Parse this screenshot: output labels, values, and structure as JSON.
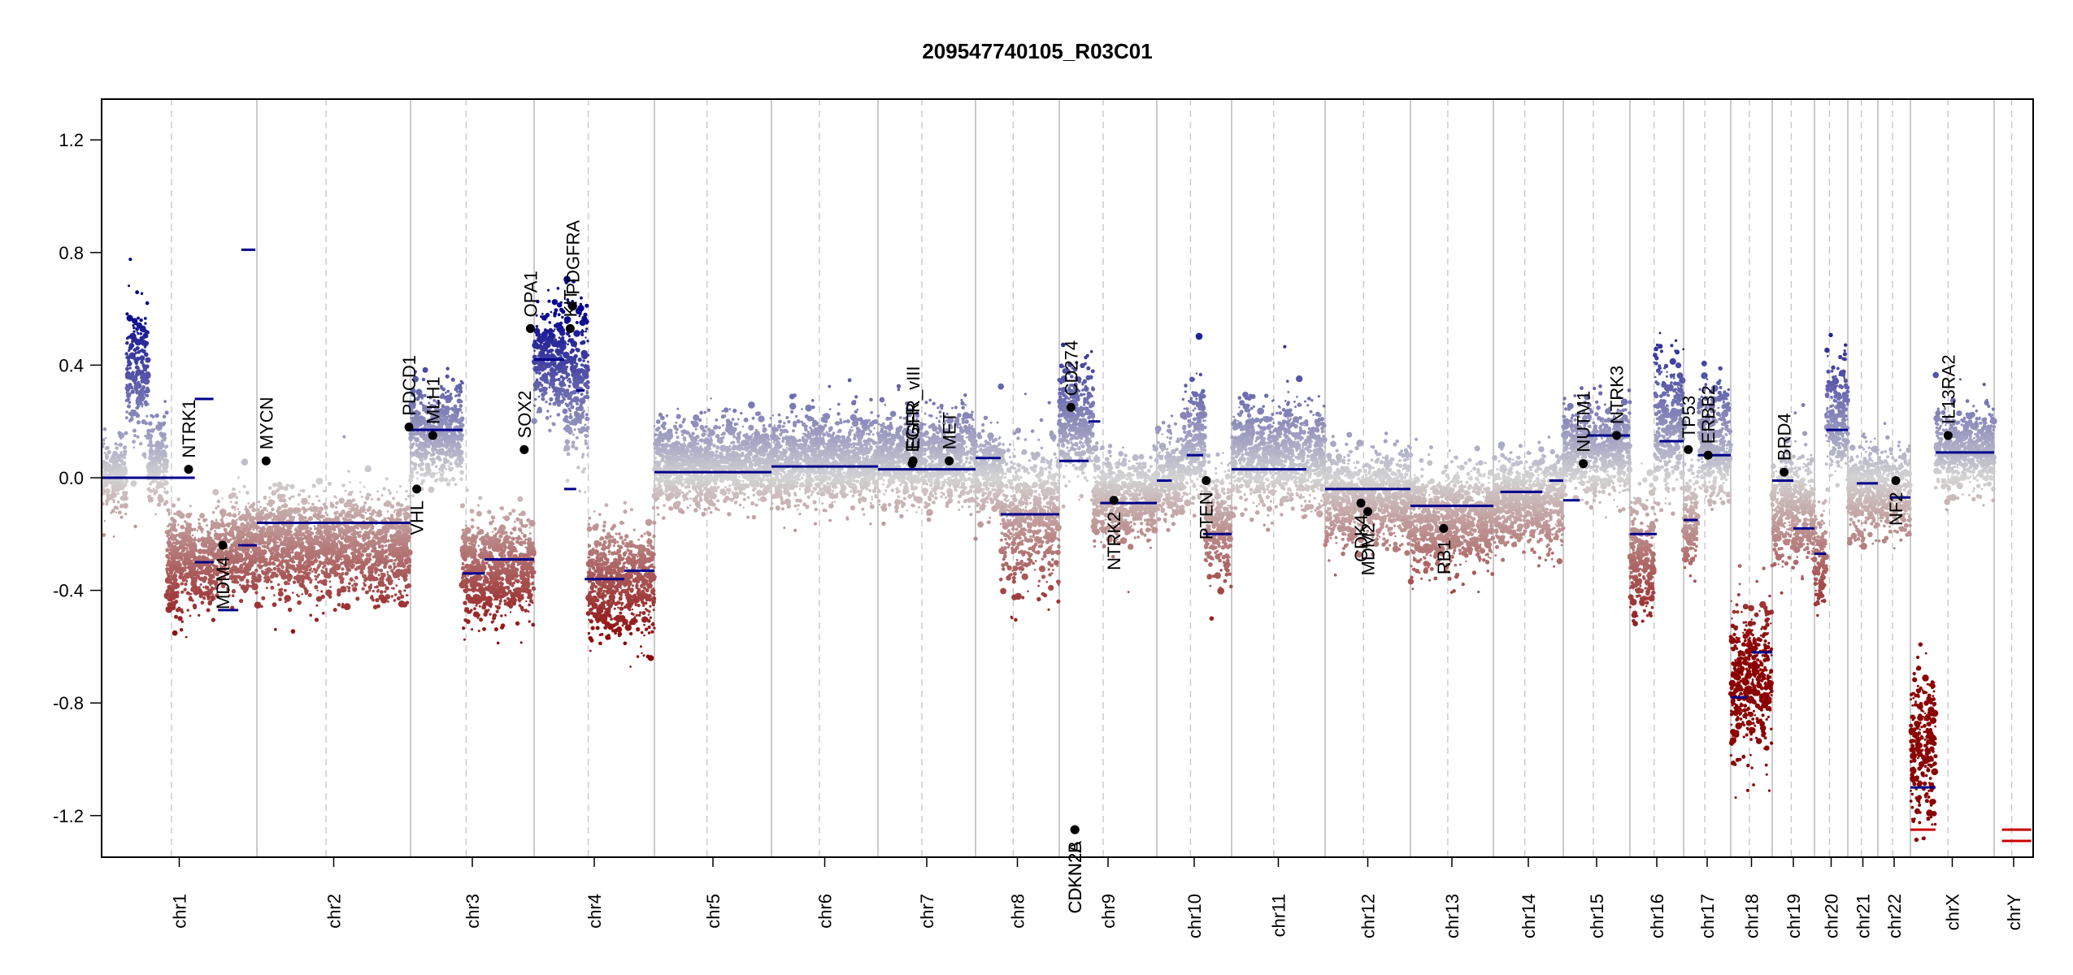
{
  "chart_data": {
    "type": "scatter",
    "title": "209547740105_R03C01",
    "xlabel": "",
    "ylabel": "",
    "ylim": [
      -1.35,
      1.35
    ],
    "yticks": [
      "-1.2",
      "-0.8",
      "-0.4",
      "0.0",
      "0.4",
      "0.8",
      "1.2"
    ],
    "color_scale": {
      "low": "#8b0000",
      "mid": "#d3d3d3",
      "high": "#00008b",
      "segment": "#00008b"
    },
    "chromosomes": [
      {
        "name": "chr1",
        "bins": [
          {
            "w": 0.16,
            "y": 0.0,
            "sd": 0.06
          },
          {
            "w": 0.14,
            "y": 0.35,
            "sd": 0.13
          },
          {
            "w": 0.12,
            "y": 0.05,
            "sd": 0.08
          },
          {
            "w": 0.3,
            "y": -0.3,
            "sd": 0.08
          },
          {
            "w": 0.28,
            "y": -0.25,
            "sd": 0.08
          }
        ],
        "segments": [
          {
            "a": 0.0,
            "b": 0.6,
            "y": 0.0
          },
          {
            "a": 0.6,
            "b": 0.72,
            "y": 0.28
          },
          {
            "a": 0.9,
            "b": 0.99,
            "y": 0.81
          },
          {
            "a": 0.6,
            "b": 0.72,
            "y": -0.3
          },
          {
            "a": 0.75,
            "b": 0.88,
            "y": -0.47
          },
          {
            "a": 0.88,
            "b": 1.0,
            "y": -0.24
          }
        ]
      },
      {
        "name": "chr2",
        "bins": [
          {
            "w": 1.0,
            "y": -0.24,
            "sd": 0.09
          }
        ],
        "segments": [
          {
            "a": 0.0,
            "b": 1.0,
            "y": -0.16
          }
        ]
      },
      {
        "name": "chr3",
        "bins": [
          {
            "w": 0.42,
            "y": 0.15,
            "sd": 0.08
          },
          {
            "w": 0.58,
            "y": -0.33,
            "sd": 0.09
          }
        ],
        "segments": [
          {
            "a": 0.0,
            "b": 0.42,
            "y": 0.17
          },
          {
            "a": 0.42,
            "b": 0.6,
            "y": -0.34
          },
          {
            "a": 0.6,
            "b": 1.0,
            "y": -0.29
          }
        ]
      },
      {
        "name": "chr4",
        "bins": [
          {
            "w": 0.25,
            "y": 0.42,
            "sd": 0.09
          },
          {
            "w": 0.2,
            "y": 0.36,
            "sd": 0.14
          },
          {
            "w": 0.55,
            "y": -0.37,
            "sd": 0.1
          }
        ],
        "segments": [
          {
            "a": 0.0,
            "b": 0.25,
            "y": 0.42
          },
          {
            "a": 0.25,
            "b": 0.35,
            "y": -0.04
          },
          {
            "a": 0.35,
            "b": 0.42,
            "y": 0.31
          },
          {
            "a": 0.42,
            "b": 0.75,
            "y": -0.36
          },
          {
            "a": 0.75,
            "b": 1.0,
            "y": -0.33
          }
        ]
      },
      {
        "name": "chr5",
        "bins": [
          {
            "w": 1.0,
            "y": 0.05,
            "sd": 0.07
          }
        ],
        "segments": [
          {
            "a": 0.0,
            "b": 1.0,
            "y": 0.02
          }
        ]
      },
      {
        "name": "chr6",
        "bins": [
          {
            "w": 1.0,
            "y": 0.06,
            "sd": 0.08
          }
        ],
        "segments": [
          {
            "a": 0.0,
            "b": 1.0,
            "y": 0.04
          }
        ]
      },
      {
        "name": "chr7",
        "bins": [
          {
            "w": 1.0,
            "y": 0.07,
            "sd": 0.08
          }
        ],
        "segments": [
          {
            "a": 0.0,
            "b": 1.0,
            "y": 0.03
          }
        ]
      },
      {
        "name": "chr8",
        "bins": [
          {
            "w": 0.3,
            "y": 0.02,
            "sd": 0.07
          },
          {
            "w": 0.7,
            "y": -0.13,
            "sd": 0.12
          }
        ],
        "segments": [
          {
            "a": 0.0,
            "b": 0.3,
            "y": 0.07
          },
          {
            "a": 0.3,
            "b": 1.0,
            "y": -0.13
          }
        ]
      },
      {
        "name": "chr9",
        "bins": [
          {
            "w": 0.35,
            "y": 0.2,
            "sd": 0.1
          },
          {
            "w": 0.65,
            "y": -0.07,
            "sd": 0.07
          }
        ],
        "segments": [
          {
            "a": 0.0,
            "b": 0.3,
            "y": 0.06
          },
          {
            "a": 0.3,
            "b": 0.42,
            "y": 0.2
          },
          {
            "a": 0.42,
            "b": 1.0,
            "y": -0.09
          }
        ]
      },
      {
        "name": "chr10",
        "bins": [
          {
            "w": 0.35,
            "y": 0.0,
            "sd": 0.07
          },
          {
            "w": 0.3,
            "y": 0.12,
            "sd": 0.1
          },
          {
            "w": 0.35,
            "y": -0.16,
            "sd": 0.1
          }
        ],
        "segments": [
          {
            "a": 0.0,
            "b": 0.2,
            "y": -0.01
          },
          {
            "a": 0.4,
            "b": 0.62,
            "y": 0.08
          },
          {
            "a": 0.62,
            "b": 1.0,
            "y": -0.2
          }
        ]
      },
      {
        "name": "chr11",
        "bins": [
          {
            "w": 1.0,
            "y": 0.08,
            "sd": 0.09
          }
        ],
        "segments": [
          {
            "a": 0.0,
            "b": 0.8,
            "y": 0.03
          }
        ]
      },
      {
        "name": "chr12",
        "bins": [
          {
            "w": 1.0,
            "y": -0.08,
            "sd": 0.08
          }
        ],
        "segments": [
          {
            "a": 0.0,
            "b": 1.0,
            "y": -0.04
          }
        ]
      },
      {
        "name": "chr13",
        "bins": [
          {
            "w": 1.0,
            "y": -0.15,
            "sd": 0.09
          }
        ],
        "segments": [
          {
            "a": 0.0,
            "b": 1.0,
            "y": -0.1
          }
        ]
      },
      {
        "name": "chr14",
        "bins": [
          {
            "w": 1.0,
            "y": -0.08,
            "sd": 0.08
          }
        ],
        "segments": [
          {
            "a": 0.1,
            "b": 0.7,
            "y": -0.05
          },
          {
            "a": 0.8,
            "b": 1.0,
            "y": -0.01
          }
        ]
      },
      {
        "name": "chr15",
        "bins": [
          {
            "w": 1.0,
            "y": 0.1,
            "sd": 0.08
          }
        ],
        "segments": [
          {
            "a": 0.0,
            "b": 0.25,
            "y": -0.08
          },
          {
            "a": 0.35,
            "b": 1.0,
            "y": 0.15
          }
        ]
      },
      {
        "name": "chr16",
        "bins": [
          {
            "w": 0.45,
            "y": -0.28,
            "sd": 0.1
          },
          {
            "w": 0.55,
            "y": 0.18,
            "sd": 0.12
          }
        ],
        "segments": [
          {
            "a": 0.0,
            "b": 0.5,
            "y": -0.2
          },
          {
            "a": 0.55,
            "b": 1.0,
            "y": 0.13
          }
        ]
      },
      {
        "name": "chr17",
        "bins": [
          {
            "w": 0.3,
            "y": -0.15,
            "sd": 0.08
          },
          {
            "w": 0.7,
            "y": 0.12,
            "sd": 0.1
          }
        ],
        "segments": [
          {
            "a": 0.0,
            "b": 0.3,
            "y": -0.15
          },
          {
            "a": 0.3,
            "b": 1.0,
            "y": 0.08
          }
        ]
      },
      {
        "name": "chr18",
        "bins": [
          {
            "w": 1.0,
            "y": -0.72,
            "sd": 0.14
          }
        ],
        "segments": [
          {
            "a": 0.0,
            "b": 0.4,
            "y": -0.78
          },
          {
            "a": 0.5,
            "b": 1.0,
            "y": -0.62
          }
        ]
      },
      {
        "name": "chr19",
        "bins": [
          {
            "w": 1.0,
            "y": -0.1,
            "sd": 0.1
          }
        ],
        "segments": [
          {
            "a": 0.0,
            "b": 0.5,
            "y": -0.01
          },
          {
            "a": 0.5,
            "b": 1.0,
            "y": -0.18
          }
        ]
      },
      {
        "name": "chr20",
        "bins": [
          {
            "w": 0.35,
            "y": -0.3,
            "sd": 0.08
          },
          {
            "w": 0.65,
            "y": 0.22,
            "sd": 0.09
          }
        ],
        "segments": [
          {
            "a": 0.0,
            "b": 0.35,
            "y": -0.27
          },
          {
            "a": 0.35,
            "b": 1.0,
            "y": 0.17
          }
        ]
      },
      {
        "name": "chr21",
        "bins": [
          {
            "w": 1.0,
            "y": -0.05,
            "sd": 0.08
          }
        ],
        "segments": [
          {
            "a": 0.3,
            "b": 1.0,
            "y": -0.02
          }
        ]
      },
      {
        "name": "chr22",
        "bins": [
          {
            "w": 1.0,
            "y": -0.05,
            "sd": 0.08
          }
        ],
        "segments": [
          {
            "a": 0.4,
            "b": 1.0,
            "y": -0.07
          }
        ]
      },
      {
        "name": "chrX",
        "bins": [
          {
            "w": 0.3,
            "y": -0.95,
            "sd": 0.13
          },
          {
            "w": 0.7,
            "y": 0.1,
            "sd": 0.07
          }
        ],
        "segments": [
          {
            "a": 0.0,
            "b": 0.3,
            "y": -1.1
          },
          {
            "a": 0.0,
            "b": 0.3,
            "y": -1.25
          },
          {
            "a": 0.3,
            "b": 1.0,
            "y": 0.09
          }
        ]
      },
      {
        "name": "chrY",
        "bins": [],
        "segments": [
          {
            "a": 0.2,
            "b": 0.95,
            "y": -1.25
          },
          {
            "a": 0.2,
            "b": 0.95,
            "y": -1.29
          }
        ]
      }
    ],
    "genes": [
      {
        "name": "NTRK1",
        "chrom": "chr1",
        "pos": 0.56,
        "y": 0.03
      },
      {
        "name": "MDM4",
        "chrom": "chr1",
        "pos": 0.78,
        "y": -0.24
      },
      {
        "name": "MYCN",
        "chrom": "chr2",
        "pos": 0.06,
        "y": 0.06
      },
      {
        "name": "VHL",
        "chrom": "chr3",
        "pos": 0.05,
        "y": -0.04
      },
      {
        "name": "PDCD1",
        "chrom": "chr2",
        "pos": 0.99,
        "y": 0.18
      },
      {
        "name": "MLH1",
        "chrom": "chr3",
        "pos": 0.18,
        "y": 0.15
      },
      {
        "name": "SOX2",
        "chrom": "chr3",
        "pos": 0.92,
        "y": 0.1
      },
      {
        "name": "OPA1",
        "chrom": "chr3",
        "pos": 0.97,
        "y": 0.53
      },
      {
        "name": "KIT",
        "chrom": "chr4",
        "pos": 0.3,
        "y": 0.53
      },
      {
        "name": "PDGFRA",
        "chrom": "chr4",
        "pos": 0.32,
        "y": 0.61
      },
      {
        "name": "EGFR",
        "chrom": "chr7",
        "pos": 0.35,
        "y": 0.05
      },
      {
        "name": "EGFR_vIII",
        "chrom": "chr7",
        "pos": 0.36,
        "y": 0.06
      },
      {
        "name": "MET",
        "chrom": "chr7",
        "pos": 0.73,
        "y": 0.06
      },
      {
        "name": "CD274",
        "chrom": "chr9",
        "pos": 0.12,
        "y": 0.25
      },
      {
        "name": "CDKN2A",
        "chrom": "chr9",
        "pos": 0.16,
        "y": -1.25
      },
      {
        "name": "CDKN2B",
        "chrom": "chr9",
        "pos": 0.16,
        "y": -1.25
      },
      {
        "name": "NTRK2",
        "chrom": "chr9",
        "pos": 0.56,
        "y": -0.08
      },
      {
        "name": "PTEN",
        "chrom": "chr10",
        "pos": 0.66,
        "y": -0.01
      },
      {
        "name": "CDK4",
        "chrom": "chr12",
        "pos": 0.42,
        "y": -0.09
      },
      {
        "name": "MDM2",
        "chrom": "chr12",
        "pos": 0.5,
        "y": -0.12
      },
      {
        "name": "RB1",
        "chrom": "chr13",
        "pos": 0.4,
        "y": -0.18
      },
      {
        "name": "NUTM1",
        "chrom": "chr15",
        "pos": 0.3,
        "y": 0.05
      },
      {
        "name": "NTRK3",
        "chrom": "chr15",
        "pos": 0.8,
        "y": 0.15
      },
      {
        "name": "TP53",
        "chrom": "chr17",
        "pos": 0.1,
        "y": 0.1
      },
      {
        "name": "ERBB2",
        "chrom": "chr17",
        "pos": 0.52,
        "y": 0.08
      },
      {
        "name": "BRD4",
        "chrom": "chr19",
        "pos": 0.28,
        "y": 0.02
      },
      {
        "name": "NF2",
        "chrom": "chr22",
        "pos": 0.55,
        "y": -0.01
      },
      {
        "name": "IL13RA2",
        "chrom": "chrX",
        "pos": 0.45,
        "y": 0.15
      }
    ]
  }
}
